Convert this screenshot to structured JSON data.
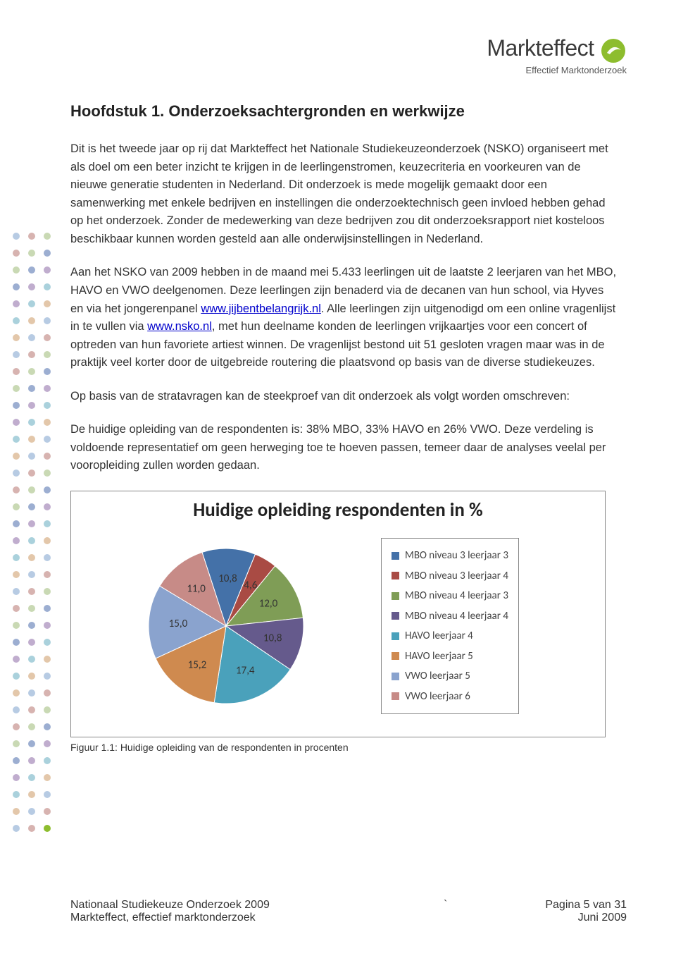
{
  "brand": {
    "name": "Markteffect",
    "tagline": "Effectief Marktonderzoek",
    "swirl_color": "#8dbd2e",
    "text_color": "#3a3a3a"
  },
  "heading": "Hoofdstuk 1. Onderzoeksachtergronden en werkwijze",
  "para1": "Dit is het tweede jaar op rij dat Markteffect het Nationale Studiekeuzeonderzoek (NSKO) organiseert met als doel om een beter inzicht te krijgen in de leerlingenstromen, keuzecriteria en voorkeuren van de nieuwe generatie studenten in Nederland. Dit onderzoek is mede mogelijk gemaakt door een samenwerking met enkele bedrijven en instellingen die onderzoektechnisch geen invloed hebben gehad op het onderzoek. Zonder de medewerking van deze bedrijven zou dit onderzoeksrapport niet kosteloos beschikbaar kunnen worden gesteld aan alle onderwijsinstellingen in Nederland.",
  "para2_a": "Aan het NSKO van 2009 hebben in de maand mei 5.433 leerlingen uit de laatste 2 leerjaren van het MBO, HAVO en VWO deelgenomen. Deze leerlingen zijn benaderd via de decanen van hun school, via Hyves en via het jongerenpanel ",
  "para2_link1_text": "www.jijbentbelangrijk.nl",
  "para2_b": ". Alle leerlingen zijn uitgenodigd om een online vragenlijst in te vullen via ",
  "para2_link2_text": "www.nsko.nl",
  "para2_c": ", met hun deelname konden de leerlingen vrijkaartjes voor een concert of optreden van hun favoriete artiest winnen. De vragenlijst bestond uit 51 gesloten vragen maar was in de praktijk veel korter door de uitgebreide routering die plaatsvond op basis van de diverse studiekeuzes.",
  "para3": "Op basis van de stratavragen kan de steekproef van dit onderzoek als volgt worden omschreven:",
  "para4": "De huidige opleiding van de respondenten is: 38% MBO, 33% HAVO en 26% VWO. Deze verdeling is voldoende representatief om geen herweging toe te hoeven passen, temeer daar de analyses veelal per vooropleiding zullen worden gedaan.",
  "chart": {
    "type": "pie",
    "title": "Huidige opleiding respondenten in %",
    "title_fontsize": 27,
    "background_color": "#ffffff",
    "border_color": "#888888",
    "slices": [
      {
        "label": "MBO niveau 3 leerjaar 3",
        "value": 10.8,
        "color": "#4471a8",
        "data_label": "10,8"
      },
      {
        "label": "MBO niveau 3 leerjaar 4",
        "value": 4.6,
        "color": "#a94b44",
        "data_label": "4,6"
      },
      {
        "label": "MBO niveau 4 leerjaar 3",
        "value": 12.0,
        "color": "#7f9d56",
        "data_label": "12,0"
      },
      {
        "label": "MBO niveau 4 leerjaar 4",
        "value": 10.8,
        "color": "#655a8c",
        "data_label": "10,8"
      },
      {
        "label": "HAVO leerjaar 4",
        "value": 17.4,
        "color": "#4aa1bb",
        "data_label": "17,4"
      },
      {
        "label": "HAVO leerjaar 5",
        "value": 15.2,
        "color": "#cf8a4f",
        "data_label": "15,2"
      },
      {
        "label": "VWO leerjaar 5",
        "value": 15.0,
        "color": "#8aa3ce",
        "data_label": "15,0"
      },
      {
        "label": "VWO leerjaar 6",
        "value": 11.0,
        "color": "#c78b87",
        "data_label": "11,0"
      }
    ],
    "label_fontsize": 15,
    "legend_fontsize": 15,
    "legend_border_color": "#888888",
    "rotation_start_deg": -18
  },
  "figure_caption": "Figuur 1.1: Huidige opleiding van de respondenten in procenten",
  "footer": {
    "left1": "Nationaal Studiekeuze Onderzoek 2009",
    "right1": "Pagina 5 van 31",
    "left2": "Markteffect, effectief marktonderzoek",
    "right2": "Juni 2009",
    "tick": "`"
  },
  "side_dots": {
    "colors": [
      "#b7cbe3",
      "#d7b3b0",
      "#c9d9b4",
      "#9caed1",
      "#c0adce",
      "#aad1dc",
      "#e3c7aa",
      "#8dbd2e"
    ],
    "dot_size": 10,
    "rows": 36
  }
}
